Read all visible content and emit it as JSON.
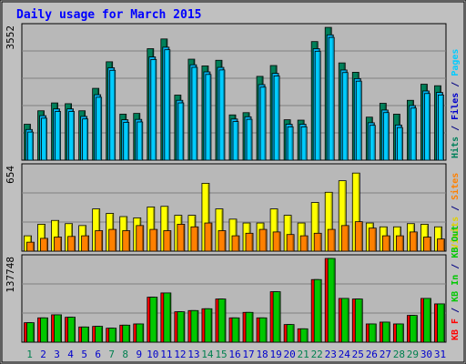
{
  "title": "Daily usage for March 2015",
  "colors": {
    "background": "#c0c0c0",
    "plot_bg": "#b8b8b8",
    "title": "#0000ff",
    "hits": "#00805a",
    "files": "#00b4f0",
    "pages": "#00ccff",
    "visits": "#ffff00",
    "sites": "#ff8000",
    "kbin": "#00c800",
    "kbout": "#00c800",
    "kbf": "#ff0000",
    "weekend_label": "#00804f",
    "weekday_label": "#0000cc"
  },
  "chart_data": [
    {
      "type": "bar",
      "title": "Daily usage for March 2015",
      "categories": [
        "1",
        "2",
        "3",
        "4",
        "5",
        "6",
        "7",
        "8",
        "9",
        "10",
        "11",
        "12",
        "13",
        "14",
        "15",
        "16",
        "17",
        "18",
        "19",
        "20",
        "21",
        "22",
        "23",
        "24",
        "25",
        "26",
        "27",
        "28",
        "29",
        "30",
        "31"
      ],
      "weekend_days": [
        "1",
        "7",
        "8",
        "14",
        "15",
        "21",
        "22",
        "28",
        "29"
      ],
      "ylim": [
        0,
        3552
      ],
      "max_label": "3552",
      "right_label": [
        {
          "text": "Hits",
          "color": "#00805a"
        },
        {
          "text": " / ",
          "color": "#000080"
        },
        {
          "text": "Files",
          "color": "#0000cc"
        },
        {
          "text": " / ",
          "color": "#000080"
        },
        {
          "text": "Pages",
          "color": "#00ccff"
        }
      ],
      "series": [
        {
          "name": "Hits",
          "values": [
            960,
            1320,
            1530,
            1510,
            1320,
            1920,
            2630,
            1230,
            1250,
            2980,
            3240,
            1740,
            2700,
            2520,
            2670,
            1210,
            1270,
            2240,
            2530,
            1080,
            1070,
            3170,
            3550,
            2600,
            2350,
            1150,
            1520,
            1230,
            1600,
            2030,
            1990
          ]
        },
        {
          "name": "Files",
          "values": [
            820,
            1190,
            1370,
            1370,
            1170,
            1750,
            2470,
            1080,
            1090,
            2760,
            3020,
            1600,
            2550,
            2360,
            2480,
            1100,
            1160,
            2020,
            2320,
            960,
            960,
            2980,
            3350,
            2410,
            2180,
            1000,
            1340,
            940,
            1460,
            1850,
            1810
          ]
        },
        {
          "name": "Pages",
          "values": [
            800,
            1170,
            1350,
            1350,
            1150,
            1730,
            2450,
            1060,
            1070,
            2740,
            3000,
            1580,
            2530,
            2340,
            2460,
            1080,
            1140,
            2000,
            2300,
            940,
            940,
            2960,
            3330,
            2390,
            2160,
            980,
            1320,
            920,
            1440,
            1830,
            1790
          ]
        }
      ]
    },
    {
      "type": "bar",
      "ylim": [
        0,
        654
      ],
      "max_label": "654",
      "right_label": [
        {
          "text": "Visits",
          "color": "#e0d000"
        },
        {
          "text": " / ",
          "color": "#000080"
        },
        {
          "text": "Sites",
          "color": "#ff8000"
        }
      ],
      "series": [
        {
          "name": "Visits",
          "values": [
            120,
            210,
            240,
            215,
            200,
            330,
            295,
            270,
            260,
            345,
            350,
            280,
            280,
            530,
            330,
            250,
            220,
            220,
            330,
            280,
            220,
            380,
            460,
            550,
            610,
            220,
            190,
            190,
            215,
            210,
            190
          ]
        },
        {
          "name": "Sites",
          "values": [
            70,
            100,
            110,
            115,
            120,
            160,
            170,
            160,
            200,
            170,
            160,
            210,
            190,
            220,
            160,
            120,
            140,
            170,
            150,
            130,
            120,
            140,
            170,
            200,
            230,
            180,
            120,
            120,
            150,
            110,
            95
          ]
        }
      ]
    },
    {
      "type": "bar",
      "ylim": [
        0,
        137748
      ],
      "max_label": "137748",
      "right_label": [
        {
          "text": "KB F",
          "color": "#ff0000"
        },
        {
          "text": " / ",
          "color": "#000080"
        },
        {
          "text": "KB In",
          "color": "#00c800"
        },
        {
          "text": " / ",
          "color": "#000080"
        },
        {
          "text": "KB Out",
          "color": "#00c800"
        }
      ],
      "series": [
        {
          "name": "KB F",
          "values": [
            32000,
            40000,
            45000,
            41000,
            25000,
            26000,
            23000,
            28000,
            30000,
            74000,
            81000,
            50000,
            52000,
            55000,
            71000,
            40000,
            49000,
            40000,
            83000,
            29000,
            22000,
            103000,
            137748,
            72000,
            71000,
            30000,
            33000,
            30000,
            44000,
            72000,
            63000
          ]
        },
        {
          "name": "KB In",
          "values": [
            32000,
            40000,
            45000,
            41000,
            25000,
            26000,
            23000,
            28000,
            30000,
            74000,
            81000,
            50000,
            52000,
            55000,
            71000,
            40000,
            49000,
            40000,
            83000,
            29000,
            22000,
            103000,
            137748,
            72000,
            71000,
            30000,
            33000,
            30000,
            44000,
            72000,
            63000
          ]
        }
      ]
    }
  ]
}
